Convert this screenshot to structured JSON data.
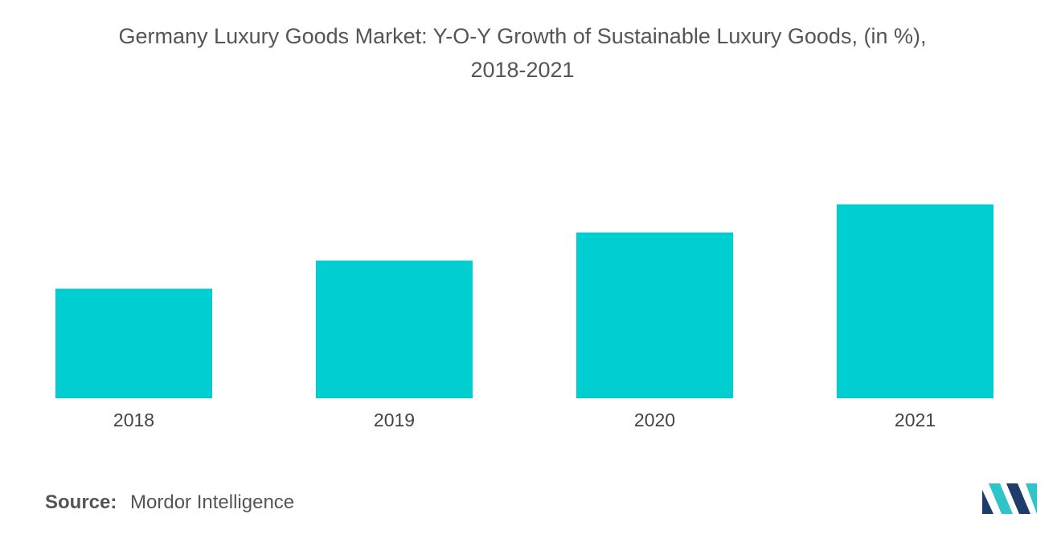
{
  "title": {
    "line1": "Germany Luxury Goods Market: Y-O-Y Growth of Sustainable Luxury Goods, (in %),",
    "line2": "2018-2021"
  },
  "chart_data": {
    "type": "bar",
    "title": "Germany Luxury Goods Market: Y-O-Y Growth of Sustainable Luxury Goods, (in %), 2018-2021",
    "categories": [
      "2018",
      "2019",
      "2020",
      "2021"
    ],
    "values": [
      3.9,
      4.9,
      5.9,
      6.9
    ],
    "ylim": [
      0,
      10
    ],
    "xlabel": "",
    "ylabel": "",
    "grid": false,
    "legend": "none",
    "bar_color": "#00CED1"
  },
  "source": {
    "label": "Source:",
    "text": "Mordor Intelligence"
  },
  "colors": {
    "bar": "#00CED1",
    "logo_dark": "#1F3D6B",
    "logo_light": "#2EC4C9"
  },
  "logo": {
    "icon": "mordor-intelligence-logo-icon"
  }
}
